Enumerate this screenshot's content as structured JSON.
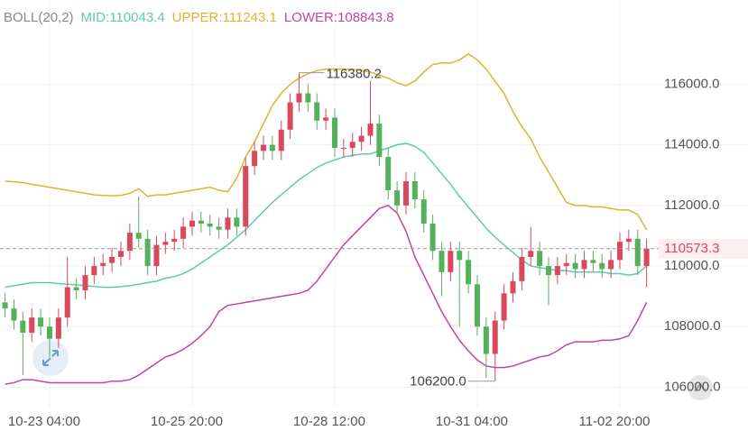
{
  "chart_data": {
    "type": "candlestick",
    "indicator": "BOLL(20,2)",
    "categories": [
      null,
      null,
      null,
      null,
      null,
      "10-23 04:00",
      null,
      null,
      null,
      null,
      null,
      null,
      null,
      null,
      null,
      null,
      null,
      null,
      null,
      null,
      null,
      "10-25 20:00",
      null,
      null,
      null,
      null,
      null,
      null,
      null,
      null,
      null,
      null,
      null,
      null,
      null,
      null,
      null,
      "10-28 12:00",
      null,
      null,
      null,
      null,
      null,
      null,
      null,
      null,
      null,
      null,
      null,
      null,
      null,
      null,
      null,
      "10-31 04:00",
      null,
      null,
      null,
      null,
      null,
      null,
      null,
      null,
      null,
      null,
      null,
      null,
      null,
      null,
      null,
      "11-02 20:00",
      null,
      null,
      null
    ],
    "open": [
      108800,
      108600,
      108200,
      107800,
      108300,
      108000,
      107600,
      108300,
      109300,
      109200,
      109700,
      110000,
      110100,
      110300,
      110500,
      111100,
      110900,
      110000,
      110700,
      110800,
      110900,
      111300,
      111500,
      111400,
      111300,
      111200,
      111600,
      111300,
      113300,
      113800,
      114000,
      113800,
      114500,
      115400,
      115700,
      115400,
      114800,
      114900,
      113900,
      113900,
      114100,
      114300,
      114700,
      113600,
      112500,
      112000,
      112800,
      112200,
      111400,
      110500,
      109800,
      110500,
      110200,
      109400,
      108000,
      107100,
      108200,
      109100,
      109500,
      110300,
      110500,
      110000,
      109700,
      110000,
      110100,
      109900,
      110200,
      110100,
      109900,
      110200,
      110800,
      110900,
      110000
    ],
    "high": [
      109100,
      108900,
      108500,
      108600,
      108600,
      108300,
      108600,
      110300,
      109600,
      110000,
      110300,
      110400,
      110600,
      110800,
      111400,
      112300,
      111200,
      111000,
      111100,
      111200,
      111600,
      111800,
      111800,
      111700,
      111600,
      111900,
      111900,
      113600,
      114100,
      114300,
      114300,
      114800,
      115700,
      116380.2,
      116000,
      115700,
      115200,
      115200,
      114200,
      114400,
      114600,
      116100,
      115000,
      113900,
      112800,
      113100,
      113100,
      112500,
      111700,
      110800,
      110800,
      110800,
      110500,
      109700,
      108300,
      108500,
      109400,
      109800,
      110600,
      111300,
      110800,
      110300,
      110300,
      110400,
      110400,
      110500,
      110500,
      110400,
      110500,
      111100,
      111200,
      111200,
      110900
    ],
    "low": [
      108300,
      107900,
      106400,
      107500,
      107700,
      107000,
      107300,
      108000,
      108900,
      108900,
      109400,
      109700,
      109800,
      110000,
      110200,
      110600,
      109700,
      109700,
      110400,
      110500,
      110600,
      111000,
      111100,
      111000,
      110900,
      110900,
      111000,
      111000,
      113000,
      113500,
      113500,
      113500,
      114200,
      115100,
      115100,
      114500,
      114500,
      113600,
      113600,
      113600,
      113800,
      114000,
      113300,
      112200,
      111700,
      111700,
      111900,
      111100,
      110200,
      109000,
      109500,
      108000,
      109100,
      107700,
      106300,
      106200,
      107900,
      108800,
      109200,
      110000,
      109700,
      108700,
      109400,
      109700,
      109600,
      109600,
      109800,
      109600,
      109600,
      109900,
      110500,
      109700,
      109300
    ],
    "close": [
      108600,
      108200,
      107800,
      108300,
      108000,
      107600,
      108300,
      109300,
      109200,
      109700,
      110000,
      110100,
      110300,
      110500,
      111100,
      110900,
      110000,
      110700,
      110800,
      110900,
      111300,
      111500,
      111400,
      111300,
      111200,
      111600,
      111300,
      113300,
      113800,
      114000,
      113800,
      114500,
      115400,
      115700,
      115400,
      114800,
      114900,
      113900,
      113900,
      114100,
      114300,
      114700,
      113600,
      112500,
      112000,
      112800,
      112200,
      111400,
      110500,
      109800,
      110500,
      110200,
      109400,
      108000,
      107100,
      108200,
      109100,
      109500,
      110300,
      110500,
      110000,
      109700,
      110000,
      110100,
      109900,
      110200,
      110100,
      109900,
      110200,
      110800,
      110900,
      110000,
      110573.3
    ],
    "up_color": "#d9485c",
    "down_color": "#55b05c",
    "series": [
      {
        "name": "MID:110043.4",
        "color": "#5ccbb0",
        "values": [
          109300,
          109350,
          109400,
          109450,
          109450,
          109450,
          109420,
          109400,
          109380,
          109350,
          109330,
          109300,
          109300,
          109320,
          109350,
          109400,
          109450,
          109500,
          109600,
          109650,
          109750,
          109900,
          110100,
          110300,
          110500,
          110700,
          110950,
          111200,
          111500,
          111800,
          112100,
          112350,
          112600,
          112850,
          113050,
          113250,
          113400,
          113500,
          113600,
          113650,
          113700,
          113700,
          113800,
          113900,
          114000,
          114050,
          113950,
          113750,
          113400,
          113050,
          112700,
          112300,
          111950,
          111600,
          111250,
          110950,
          110700,
          110450,
          110200,
          110000,
          109950,
          109900,
          109850,
          109850,
          109800,
          109800,
          109800,
          109800,
          109750,
          109750,
          109700,
          109750,
          110000
        ]
      },
      {
        "name": "UPPER:111243.1",
        "color": "#e3b22c",
        "values": [
          112800,
          112780,
          112750,
          112700,
          112650,
          112600,
          112550,
          112500,
          112450,
          112400,
          112350,
          112330,
          112320,
          112330,
          112400,
          112550,
          112300,
          112350,
          112350,
          112400,
          112450,
          112500,
          112550,
          112600,
          112500,
          112450,
          112900,
          113600,
          114100,
          114700,
          115300,
          115700,
          116000,
          116200,
          116350,
          116450,
          116500,
          116500,
          116500,
          116500,
          116450,
          116400,
          116300,
          116200,
          116050,
          115950,
          116100,
          116400,
          116650,
          116700,
          116700,
          116800,
          117000,
          116800,
          116500,
          116100,
          115700,
          115100,
          114600,
          114200,
          113600,
          113100,
          112600,
          112100,
          112000,
          112000,
          111950,
          111950,
          111900,
          111850,
          111850,
          111700,
          111200
        ]
      },
      {
        "name": "LOWER:108843.8",
        "color": "#c4449e",
        "values": [
          106100,
          106150,
          106250,
          106250,
          106200,
          106150,
          106150,
          106150,
          106150,
          106150,
          106150,
          106150,
          106200,
          106200,
          106250,
          106400,
          106600,
          106800,
          107000,
          107100,
          107250,
          107450,
          107700,
          108000,
          108500,
          108700,
          108750,
          108800,
          108850,
          108900,
          108950,
          109000,
          109050,
          109100,
          109200,
          109500,
          109900,
          110300,
          110700,
          111000,
          111300,
          111600,
          111900,
          112000,
          111750,
          111150,
          110300,
          109700,
          109100,
          108500,
          108000,
          107550,
          107200,
          106900,
          106700,
          106650,
          106650,
          106700,
          106800,
          106900,
          107000,
          107050,
          107200,
          107400,
          107500,
          107500,
          107500,
          107550,
          107550,
          107600,
          107700,
          108200,
          108800
        ]
      }
    ],
    "high_label": 116380.2,
    "low_label": {
      "value": 106200,
      "label": "106200.0"
    },
    "last_price": 110573.3,
    "ylim": [
      105330,
      118780
    ],
    "yticks": [
      {
        "value": 106000,
        "label": "106000.0"
      },
      {
        "value": 108000,
        "label": "108000.0"
      },
      {
        "value": 110000,
        "label": "110000.0"
      },
      {
        "value": 112000,
        "label": "112000.0"
      },
      {
        "value": 114000,
        "label": "114000.0"
      },
      {
        "value": 116000,
        "label": "116000.0"
      }
    ],
    "grid": true
  }
}
